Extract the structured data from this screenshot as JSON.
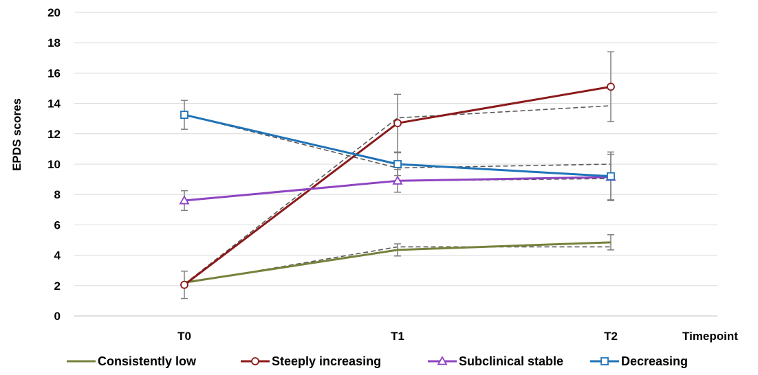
{
  "chart_data": {
    "type": "line",
    "title": "",
    "xlabel": "Timepoint",
    "ylabel": "EPDS scores",
    "categories": [
      "T0",
      "T1",
      "T2"
    ],
    "ylim": [
      0,
      20
    ],
    "yticks": [
      "0",
      "2",
      "4",
      "6",
      "8",
      "10",
      "12",
      "14",
      "16",
      "18",
      "20"
    ],
    "grid": "horizontal",
    "legend_position": "bottom",
    "series": [
      {
        "name": "Consistently low",
        "color": "#76813b",
        "marker": "none",
        "values": [
          2.2,
          4.35,
          4.85
        ],
        "error": [
          null,
          null,
          null
        ],
        "fitted": [
          2.15,
          4.55,
          4.55
        ]
      },
      {
        "name": "Steeply increasing",
        "color": "#8b1a1a",
        "marker": "circle",
        "values": [
          2.05,
          12.7,
          15.1
        ],
        "error": [
          0.9,
          1.9,
          2.3
        ],
        "fitted": [
          2.1,
          13.05,
          13.85
        ]
      },
      {
        "name": "Subclinical stable",
        "color": "#8e44c2",
        "marker": "triangle",
        "values": [
          7.6,
          8.9,
          9.15
        ],
        "error": [
          0.65,
          0.75,
          0.0
        ],
        "fitted": [
          7.6,
          8.9,
          9.05
        ]
      },
      {
        "name": "Decreasing",
        "color": "#1f73b7",
        "marker": "square",
        "values": [
          13.25,
          10.0,
          9.2
        ],
        "error": [
          0.95,
          0.0,
          1.6
        ],
        "fitted": [
          13.25,
          9.75,
          10.0
        ]
      }
    ],
    "extra_error_bars": [
      {
        "category": "T1",
        "value": 4.35,
        "error": 0.4
      },
      {
        "category": "T2",
        "value": 4.85,
        "error": 0.5
      },
      {
        "category": "T1",
        "value": 10.0,
        "error": 0.75
      },
      {
        "category": "T2",
        "value": 9.15,
        "error": 1.5
      }
    ]
  }
}
